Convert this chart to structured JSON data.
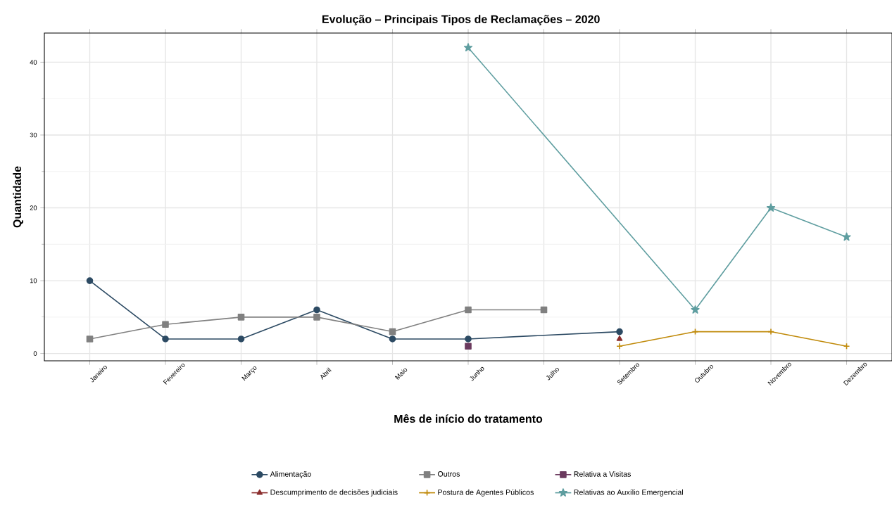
{
  "chart_data": {
    "type": "line",
    "title": "Evolução – Principais Tipos de Reclamações – 2020",
    "xlabel": "Mês de início do tratamento",
    "ylabel": "Quantidade",
    "categories": [
      "Janeiro",
      "Fevereiro",
      "Março",
      "Abril",
      "Maio",
      "Junho",
      "Julho",
      "Setembro",
      "Outubro",
      "Novembro",
      "Dezembro"
    ],
    "series": [
      {
        "name": "Alimentação",
        "color": "#2c4a63",
        "marker": "circle",
        "values": [
          10,
          2,
          2,
          6,
          2,
          2,
          null,
          3,
          null,
          null,
          null
        ]
      },
      {
        "name": "Outros",
        "color": "#808080",
        "marker": "square",
        "values": [
          2,
          4,
          5,
          5,
          3,
          6,
          6,
          null,
          null,
          null,
          null
        ]
      },
      {
        "name": "Relativa a Visitas",
        "color": "#6b3a5e",
        "marker": "square",
        "values": [
          null,
          null,
          null,
          null,
          null,
          1,
          null,
          null,
          null,
          null,
          null
        ]
      },
      {
        "name": "Descumprimento de decisões judiciais",
        "color": "#8b2e2e",
        "marker": "triangle",
        "values": [
          null,
          null,
          null,
          null,
          null,
          null,
          null,
          2,
          null,
          null,
          null
        ]
      },
      {
        "name": "Postura de Agentes Públicos",
        "color": "#c08a0a",
        "marker": "cross",
        "values": [
          null,
          null,
          null,
          null,
          null,
          null,
          null,
          1,
          3,
          3,
          1
        ]
      },
      {
        "name": "Relativas ao Auxílio Emergencial",
        "color": "#5f9ea0",
        "marker": "star",
        "values": [
          null,
          null,
          null,
          null,
          null,
          42,
          null,
          null,
          6,
          20,
          16
        ]
      }
    ],
    "ylim": [
      -1,
      44
    ],
    "yticks": [
      0,
      10,
      20,
      30,
      40
    ],
    "grid": true,
    "legend": "bottom",
    "line_style": "solid"
  }
}
